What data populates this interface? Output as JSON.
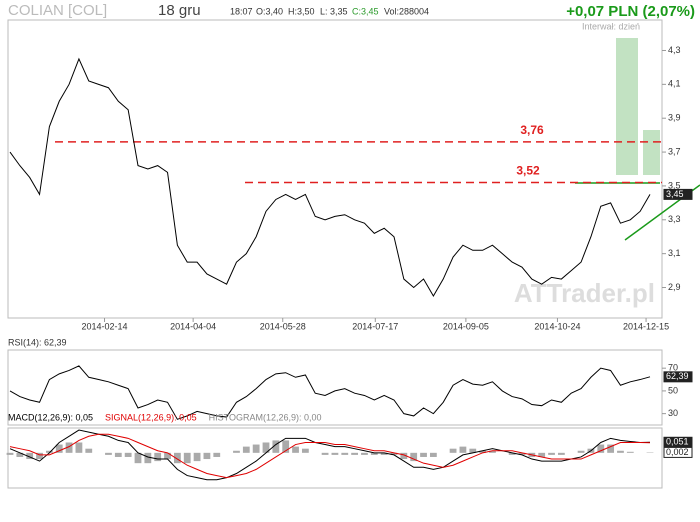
{
  "header": {
    "name": "COLIAN [COL]",
    "date": "18 gru",
    "time": "18:07",
    "open": "O:3,40",
    "high": "H:3,50",
    "low": "L: 3,35",
    "close": "C:3,45",
    "volume": "Vol:288004",
    "change": "+0,07 PLN (2,07%)",
    "interval": "Interwał: dzień",
    "watermark": "ATTrader.pl"
  },
  "chart_data": [
    {
      "type": "line",
      "color": "#000000",
      "values": [
        3.7,
        3.62,
        3.55,
        3.45,
        3.85,
        4.0,
        4.1,
        4.25,
        4.12,
        4.1,
        4.08,
        4.0,
        3.95,
        3.62,
        3.6,
        3.62,
        3.58,
        3.15,
        3.05,
        3.05,
        2.98,
        2.95,
        2.92,
        3.05,
        3.1,
        3.2,
        3.35,
        3.42,
        3.45,
        3.42,
        3.45,
        3.32,
        3.3,
        3.32,
        3.33,
        3.3,
        3.28,
        3.22,
        3.25,
        3.2,
        2.95,
        2.9,
        2.95,
        2.85,
        2.95,
        3.08,
        3.15,
        3.12,
        3.12,
        3.15,
        3.1,
        3.05,
        3.02,
        2.95,
        2.92,
        2.96,
        2.95,
        3.0,
        3.05,
        3.2,
        3.38,
        3.4,
        3.28,
        3.3,
        3.35,
        3.45
      ],
      "xlim": [
        0,
        65
      ],
      "xticks": [
        {
          "value": 9.6,
          "label": "2014-02-14"
        },
        {
          "value": 18.6,
          "label": "2014-04-04"
        },
        {
          "value": 27.7,
          "label": "2014-05-28"
        },
        {
          "value": 37.1,
          "label": "2014-07-17"
        },
        {
          "value": 46.3,
          "label": "2014-09-05"
        },
        {
          "value": 55.6,
          "label": "2014-10-24"
        },
        {
          "value": 64.6,
          "label": "2014-12-15"
        }
      ],
      "ylim": [
        2.72,
        4.48
      ],
      "yticks": [
        {
          "value": 2.9,
          "label": "2,9"
        },
        {
          "value": 3.1,
          "label": "3,1"
        },
        {
          "value": 3.3,
          "label": "3,3"
        },
        {
          "value": 3.5,
          "label": "3,5"
        },
        {
          "value": 3.7,
          "label": "3,7"
        },
        {
          "value": 3.9,
          "label": "3,9"
        },
        {
          "value": 4.1,
          "label": "4,1"
        },
        {
          "value": 4.3,
          "label": "4,3"
        }
      ],
      "hlines": [
        {
          "value": 3.76,
          "label": "3,76"
        },
        {
          "value": 3.52,
          "label": "3,52"
        }
      ],
      "end_labels": [
        {
          "value": 3.45,
          "label": "3,45"
        }
      ]
    },
    {
      "type": "line",
      "title": "RSI(14): 62,39",
      "color": "#000000",
      "values": [
        50,
        45,
        42,
        40,
        60,
        65,
        68,
        72,
        62,
        60,
        58,
        55,
        52,
        35,
        38,
        42,
        40,
        25,
        28,
        32,
        30,
        28,
        27,
        40,
        45,
        52,
        60,
        65,
        66,
        62,
        64,
        48,
        46,
        50,
        52,
        48,
        46,
        42,
        46,
        42,
        30,
        28,
        35,
        30,
        40,
        55,
        60,
        56,
        55,
        58,
        50,
        45,
        43,
        38,
        37,
        42,
        40,
        48,
        52,
        62,
        70,
        68,
        55,
        58,
        60,
        62.39
      ],
      "ylim": [
        20,
        86
      ],
      "yticks": [
        30,
        50,
        70
      ],
      "end_labels": [
        {
          "value": 62.39,
          "label": "62,39"
        }
      ]
    },
    {
      "type": "line",
      "ylim": [
        -0.17,
        0.12
      ],
      "series": [
        {
          "name": "MACD(12,26,9): 0,05",
          "color": "#000000",
          "values": [
            0.02,
            0.0,
            -0.02,
            -0.04,
            0.0,
            0.05,
            0.08,
            0.11,
            0.1,
            0.09,
            0.08,
            0.06,
            0.05,
            0.0,
            -0.02,
            -0.03,
            -0.03,
            -0.08,
            -0.11,
            -0.12,
            -0.13,
            -0.13,
            -0.12,
            -0.1,
            -0.07,
            -0.04,
            0.0,
            0.04,
            0.07,
            0.07,
            0.07,
            0.05,
            0.04,
            0.03,
            0.03,
            0.02,
            0.01,
            0.0,
            0.0,
            -0.01,
            -0.04,
            -0.07,
            -0.07,
            -0.08,
            -0.07,
            -0.04,
            -0.01,
            0.0,
            0.01,
            0.02,
            0.01,
            0.0,
            -0.01,
            -0.03,
            -0.04,
            -0.04,
            -0.04,
            -0.03,
            -0.02,
            0.01,
            0.05,
            0.07,
            0.06,
            0.055,
            0.05,
            0.051
          ]
        },
        {
          "name": "SIGNAL(12,26,9): 0,05",
          "color": "#e00000",
          "values": [
            0.03,
            0.02,
            0.01,
            -0.01,
            -0.01,
            0.01,
            0.03,
            0.06,
            0.08,
            0.09,
            0.09,
            0.08,
            0.07,
            0.05,
            0.03,
            0.01,
            0.0,
            -0.03,
            -0.06,
            -0.08,
            -0.1,
            -0.11,
            -0.12,
            -0.11,
            -0.1,
            -0.08,
            -0.05,
            -0.02,
            0.01,
            0.04,
            0.05,
            0.05,
            0.05,
            0.04,
            0.04,
            0.03,
            0.02,
            0.01,
            0.01,
            0.0,
            -0.01,
            -0.03,
            -0.05,
            -0.06,
            -0.07,
            -0.06,
            -0.04,
            -0.02,
            0.0,
            0.01,
            0.01,
            0.01,
            0.0,
            -0.01,
            -0.02,
            -0.03,
            -0.03,
            -0.03,
            -0.03,
            -0.01,
            0.01,
            0.03,
            0.05,
            0.05,
            0.05,
            0.049
          ]
        },
        {
          "name": "HISTOGRAM(12,26,9): 0,00",
          "color": "#aaaaaa",
          "style": "bar",
          "values": [
            -0.01,
            -0.02,
            -0.03,
            -0.03,
            0.01,
            0.04,
            0.05,
            0.05,
            0.02,
            0.0,
            -0.01,
            -0.02,
            -0.02,
            -0.05,
            -0.05,
            -0.04,
            -0.03,
            -0.05,
            -0.05,
            -0.04,
            -0.03,
            -0.02,
            0.0,
            0.01,
            0.03,
            0.04,
            0.05,
            0.06,
            0.06,
            0.03,
            0.02,
            0.0,
            -0.01,
            -0.01,
            -0.01,
            -0.01,
            -0.01,
            -0.01,
            -0.01,
            -0.01,
            -0.03,
            -0.04,
            -0.02,
            -0.02,
            0.0,
            0.02,
            0.03,
            0.02,
            0.01,
            0.01,
            0.0,
            -0.01,
            -0.01,
            -0.02,
            -0.02,
            -0.01,
            -0.01,
            0.0,
            0.01,
            0.02,
            0.04,
            0.04,
            0.01,
            0.005,
            0.0,
            0.002
          ]
        }
      ],
      "end_labels": [
        {
          "value": 0.051,
          "label": "0,051"
        },
        {
          "value": 0.002,
          "label": "0,002"
        }
      ]
    }
  ]
}
